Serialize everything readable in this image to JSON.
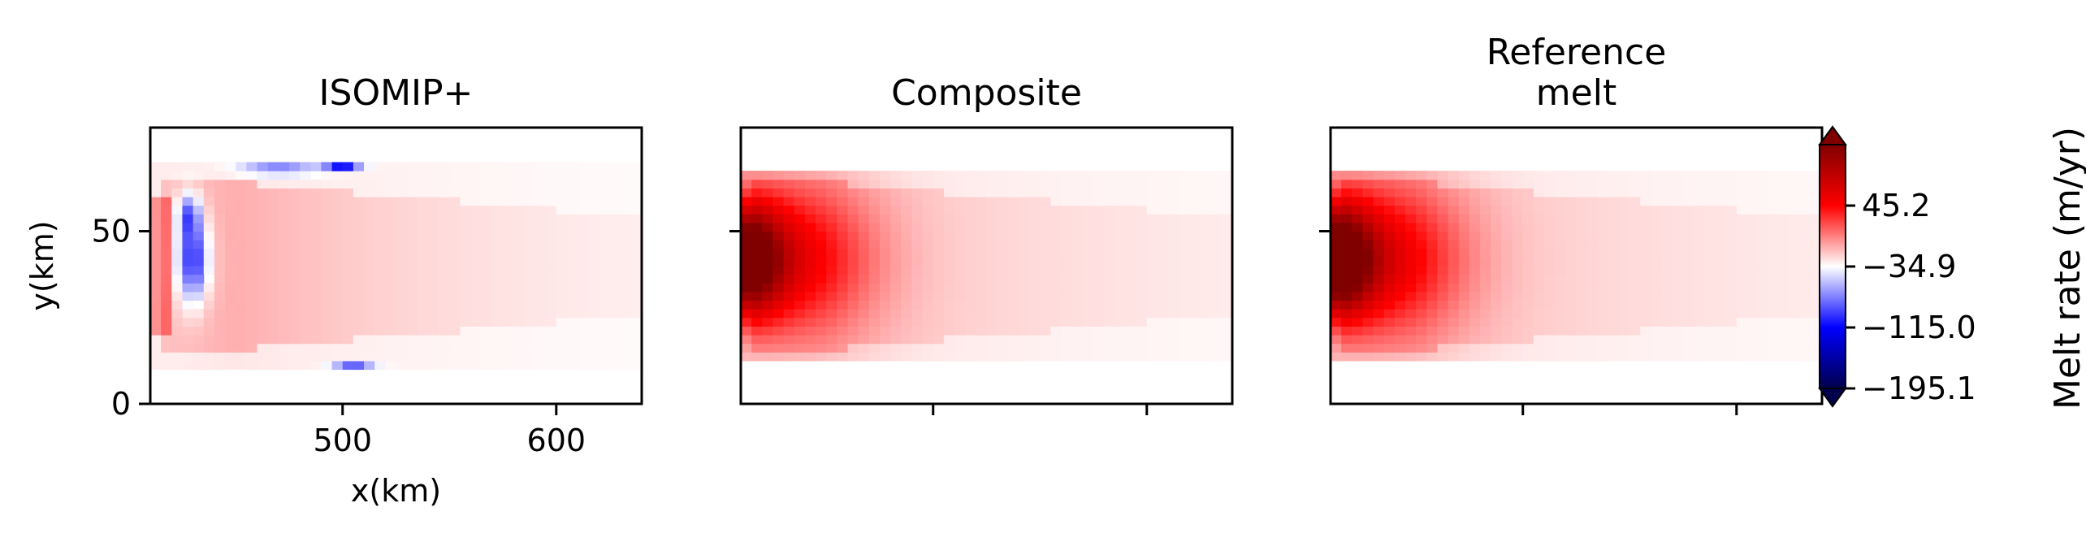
{
  "chart_data": {
    "type": "heatmap",
    "colormap": "seismic",
    "colorbar": {
      "label": "Melt rate (m/yr)",
      "ticks": [
        45.2,
        -34.9,
        -115.0,
        -195.1
      ],
      "tick_labels": [
        "45.2",
        "−34.9",
        "−115.0",
        "−195.1"
      ],
      "range": [
        -195.1,
        125.3
      ],
      "extend": "both"
    },
    "panels": [
      {
        "title": "ISOMIP+",
        "xlabel": "x(km)",
        "ylabel": "y(km)",
        "xlim": [
          410,
          640
        ],
        "ylim": [
          0,
          80
        ],
        "xticks": [
          500,
          600
        ],
        "xtick_labels": [
          "500",
          "600"
        ],
        "yticks": [
          0,
          50
        ],
        "ytick_labels": [
          "0",
          "50"
        ],
        "field": "isomip"
      },
      {
        "title": "Composite",
        "xlabel": "",
        "ylabel": "",
        "xlim": [
          410,
          640
        ],
        "ylim": [
          0,
          80
        ],
        "xticks": [
          500,
          600
        ],
        "xtick_labels": [
          "",
          ""
        ],
        "yticks": [
          50
        ],
        "ytick_labels": [
          ""
        ],
        "field": "composite"
      },
      {
        "title": "Reference\nmelt",
        "xlabel": "",
        "ylabel": "",
        "xlim": [
          410,
          640
        ],
        "ylim": [
          0,
          80
        ],
        "xticks": [
          500,
          600
        ],
        "xtick_labels": [
          "",
          ""
        ],
        "yticks": [
          50
        ],
        "ytick_labels": [
          ""
        ],
        "field": "reference"
      }
    ]
  }
}
